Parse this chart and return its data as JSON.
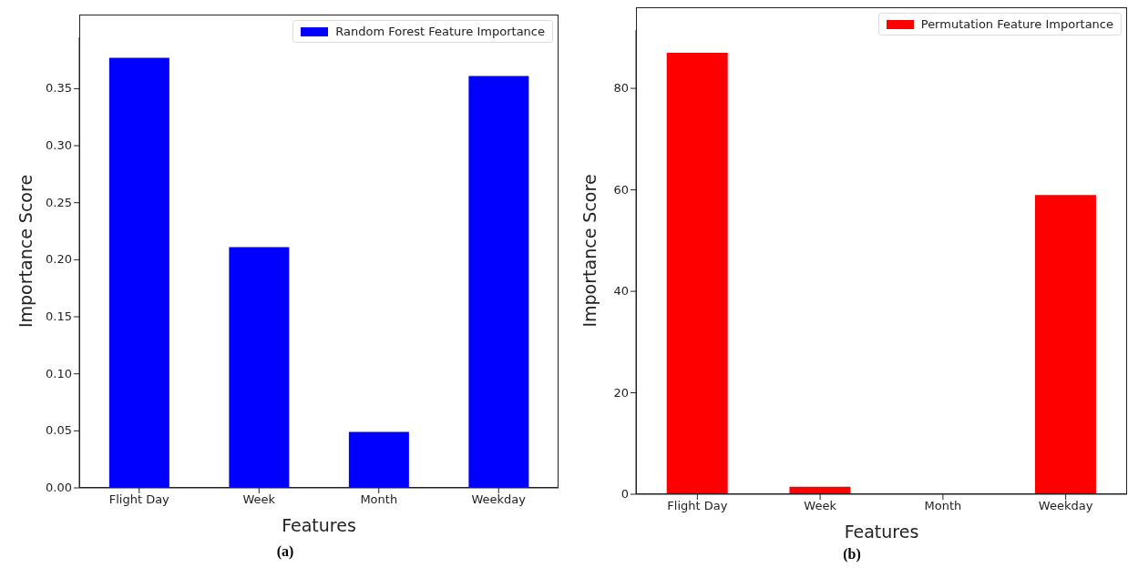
{
  "chart_data": [
    {
      "type": "bar",
      "categories": [
        "Flight Day",
        "Week",
        "Month",
        "Weekday"
      ],
      "xlabel": "Features",
      "ylabel": "Importance Score",
      "ylim": [
        0,
        0.395
      ],
      "yticks": [
        {
          "value": 0,
          "label": "0.00"
        },
        {
          "value": 0.05,
          "label": "0.05"
        },
        {
          "value": 0.1,
          "label": "0.10"
        },
        {
          "value": 0.15,
          "label": "0.15"
        },
        {
          "value": 0.2,
          "label": "0.20"
        },
        {
          "value": 0.25,
          "label": "0.25"
        },
        {
          "value": 0.3,
          "label": "0.30"
        },
        {
          "value": 0.35,
          "label": "0.35"
        }
      ],
      "legend": "top right",
      "annotations": [
        "(a)"
      ],
      "series": [
        {
          "name": "Random Forest Feature Importance",
          "color": "#0000ff",
          "values": [
            0.377,
            0.211,
            0.049,
            0.361
          ]
        }
      ]
    },
    {
      "type": "bar",
      "categories": [
        "Flight Day",
        "Week",
        "Month",
        "Weekday"
      ],
      "xlabel": "Features",
      "ylabel": "Importance Score",
      "ylim": [
        0,
        91.5
      ],
      "yticks": [
        0,
        20,
        40,
        60,
        80
      ],
      "legend": "top right",
      "annotations": [
        "(b)"
      ],
      "series": [
        {
          "name": "Permutation Feature Importance",
          "color": "#ff0000",
          "values": [
            87,
            1.5,
            0,
            59
          ]
        }
      ]
    }
  ]
}
